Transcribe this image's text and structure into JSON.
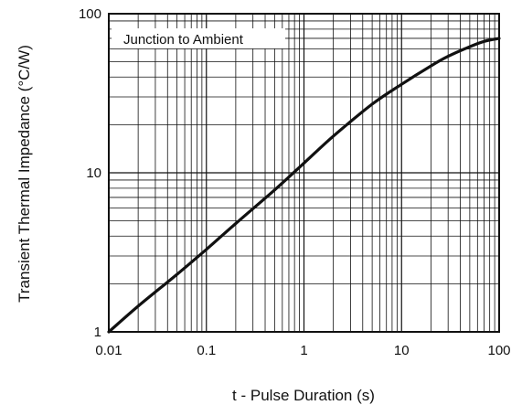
{
  "chart_data": {
    "type": "line",
    "title": "",
    "xlabel": "t - Pulse Duration (s)",
    "ylabel": "Transient Thermal Impedance (°C/W)",
    "x_scale": "log",
    "y_scale": "log",
    "xlim": [
      0.01,
      100
    ],
    "ylim": [
      1,
      100
    ],
    "grid": true,
    "legend_placement": "top-left",
    "x_ticks": [
      "0.01",
      "0.1",
      "1",
      "10",
      "100"
    ],
    "y_ticks": [
      "1",
      "10",
      "100"
    ],
    "annotation": "Junction to Ambient",
    "series": [
      {
        "x": [
          0.01,
          0.02,
          0.05,
          0.1,
          0.2,
          0.5,
          1,
          2,
          5,
          10,
          20,
          30,
          50,
          70,
          100
        ],
        "y": [
          1.0,
          1.45,
          2.3,
          3.3,
          4.8,
          7.8,
          11.5,
          17,
          27,
          36,
          47,
          54,
          62,
          67,
          70
        ]
      }
    ],
    "colors": {
      "line": "#111111",
      "grid": "#111111",
      "background": "#ffffff"
    }
  }
}
